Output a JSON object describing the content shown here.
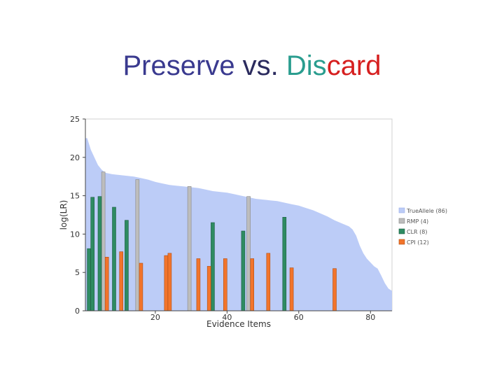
{
  "title": {
    "part1": "Preserve",
    "part2": " vs. ",
    "part3": "Dis",
    "part4": "card",
    "colors": {
      "part1": "#3a3a8f",
      "part2": "#2b2b5e",
      "part3": "#2a9d8f",
      "part4": "#d62020"
    }
  },
  "chart_data": {
    "type": "bar",
    "xlabel": "Evidence Items",
    "ylabel": "log(LR)",
    "xlim": [
      0.5,
      86
    ],
    "ylim": [
      0,
      25
    ],
    "xticks": [
      20,
      40,
      60,
      80
    ],
    "yticks": [
      0,
      5,
      10,
      15,
      20,
      25
    ],
    "grid": false,
    "legend_position": "right",
    "area": {
      "name": "TrueAllele (86)",
      "color": "#bcccf7",
      "x": [
        1,
        2,
        3,
        4,
        5,
        6,
        8,
        10,
        12,
        14,
        16,
        18,
        20,
        22,
        24,
        26,
        28,
        30,
        32,
        34,
        36,
        38,
        40,
        42,
        44,
        46,
        48,
        50,
        52,
        54,
        56,
        58,
        60,
        62,
        64,
        66,
        68,
        70,
        72,
        74,
        75,
        76,
        77,
        78,
        79,
        80,
        81,
        82,
        83,
        84,
        85,
        86
      ],
      "y": [
        22.5,
        21,
        20,
        19,
        18.4,
        18,
        17.8,
        17.7,
        17.6,
        17.5,
        17.3,
        17.1,
        16.8,
        16.6,
        16.4,
        16.3,
        16.2,
        16.1,
        16.0,
        15.8,
        15.6,
        15.5,
        15.4,
        15.2,
        15.0,
        14.8,
        14.6,
        14.5,
        14.4,
        14.3,
        14.1,
        13.9,
        13.7,
        13.4,
        13.1,
        12.7,
        12.3,
        11.8,
        11.4,
        11.0,
        10.6,
        9.8,
        8.5,
        7.5,
        6.8,
        6.3,
        5.8,
        5.5,
        4.6,
        3.6,
        2.9,
        2.6
      ]
    },
    "series": [
      {
        "name": "RMP (4)",
        "color": "#bdbdbd",
        "stroke": "#888888",
        "x": [
          5.5,
          15,
          29.5,
          46
        ],
        "values": [
          18.1,
          17.1,
          16.2,
          14.9
        ]
      },
      {
        "name": "CLR (8)",
        "color": "#2e8b62",
        "stroke": "#1d5e41",
        "x": [
          1.5,
          2.5,
          4.5,
          8.5,
          12,
          36,
          44.5,
          56
        ],
        "values": [
          8.1,
          14.8,
          14.9,
          13.5,
          11.8,
          11.5,
          10.4,
          12.2
        ]
      },
      {
        "name": "CPI (12)",
        "color": "#f2742b",
        "stroke": "#b04f14",
        "x": [
          6.5,
          10.5,
          16,
          23,
          24,
          32,
          35,
          39.5,
          47,
          51.5,
          58,
          70
        ],
        "values": [
          7.0,
          7.7,
          6.2,
          7.2,
          7.5,
          6.8,
          5.8,
          6.8,
          6.8,
          7.5,
          5.6,
          5.5
        ]
      }
    ]
  }
}
